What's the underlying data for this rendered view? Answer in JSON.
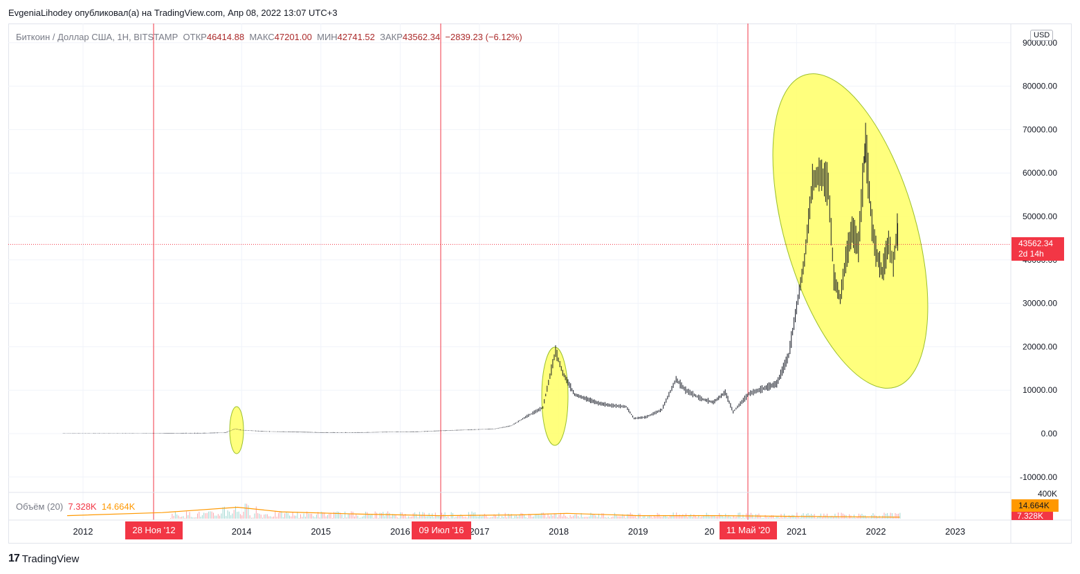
{
  "header": {
    "attribution": "EvgeniaLihodey опубликовал(а) на TradingView.com, Апр 08, 2022 13:07 UTC+3"
  },
  "legend": {
    "symbol": "Биткоин / Доллар США, 1Н, BITSTAMP",
    "open_label": "ОТКР",
    "open": "46414.88",
    "high_label": "МАКС",
    "high": "47201.00",
    "low_label": "МИН",
    "low": "42741.52",
    "close_label": "ЗАКР",
    "close": "43562.34",
    "change": "−2839.23 (−6.12%)"
  },
  "volume_legend": {
    "label": "Объём (20)",
    "value": "7.328K",
    "ma": "14.664K"
  },
  "currency_badge": "USD",
  "price_label": {
    "price": "43562.34",
    "countdown": "2d 14h"
  },
  "volume_labels": {
    "ma": "14.664K",
    "value": "7.328K"
  },
  "date_markers": [
    "28 Ноя '12",
    "09 Июл '16",
    "11 Май '20"
  ],
  "footer": {
    "logo": "17",
    "brand": "TradingView"
  },
  "colors": {
    "marker": "#f23645",
    "ellipse": "#ffff66",
    "ellipse_stroke": "#9bbf2a",
    "candle": "#131722",
    "volume_ma": "#ff9800",
    "volume_bar": "#26a69a"
  },
  "chart_data": {
    "type": "line",
    "title": "",
    "x_ticks": [
      "2012",
      "2014",
      "2015",
      "2016",
      "2017",
      "2018",
      "2019",
      "20",
      "2021",
      "2022",
      "2023"
    ],
    "y_ticks": [
      "-10000.00",
      "0.00",
      "10000.00",
      "20000.00",
      "30000.00",
      "40000.00",
      "50000.00",
      "60000.00",
      "70000.00",
      "80000.00",
      "90000.00"
    ],
    "ylim": [
      -10000,
      90000
    ],
    "volume_axis_label": "400K",
    "grid": true,
    "last_price": 43562.34,
    "series": [
      {
        "values": [
          [
            2011.75,
            5
          ],
          [
            2012.5,
            8
          ],
          [
            2012.9,
            12
          ],
          [
            2013.3,
            100
          ],
          [
            2013.5,
            100
          ],
          [
            2013.8,
            250
          ],
          [
            2013.92,
            1100
          ],
          [
            2014.0,
            800
          ],
          [
            2014.3,
            500
          ],
          [
            2014.8,
            350
          ],
          [
            2015.0,
            250
          ],
          [
            2015.5,
            250
          ],
          [
            2015.9,
            400
          ],
          [
            2016.2,
            420
          ],
          [
            2016.5,
            650
          ],
          [
            2016.9,
            900
          ],
          [
            2017.2,
            1100
          ],
          [
            2017.4,
            1800
          ],
          [
            2017.6,
            4000
          ],
          [
            2017.8,
            6000
          ],
          [
            2017.96,
            19000
          ],
          [
            2018.05,
            14000
          ],
          [
            2018.2,
            9000
          ],
          [
            2018.35,
            8000
          ],
          [
            2018.5,
            7000
          ],
          [
            2018.65,
            6500
          ],
          [
            2018.85,
            6200
          ],
          [
            2018.95,
            3500
          ],
          [
            2019.1,
            3800
          ],
          [
            2019.3,
            5500
          ],
          [
            2019.48,
            12500
          ],
          [
            2019.6,
            10000
          ],
          [
            2019.8,
            8000
          ],
          [
            2019.95,
            7200
          ],
          [
            2020.1,
            9500
          ],
          [
            2020.2,
            5000
          ],
          [
            2020.4,
            9200
          ],
          [
            2020.6,
            10500
          ],
          [
            2020.75,
            11500
          ],
          [
            2020.9,
            18000
          ],
          [
            2021.0,
            29000
          ],
          [
            2021.1,
            40000
          ],
          [
            2021.2,
            58000
          ],
          [
            2021.3,
            60000
          ],
          [
            2021.4,
            57000
          ],
          [
            2021.47,
            36000
          ],
          [
            2021.55,
            31000
          ],
          [
            2021.62,
            40000
          ],
          [
            2021.7,
            47000
          ],
          [
            2021.78,
            43000
          ],
          [
            2021.85,
            62000
          ],
          [
            2021.87,
            67000
          ],
          [
            2021.95,
            48000
          ],
          [
            2022.0,
            42000
          ],
          [
            2022.08,
            37000
          ],
          [
            2022.16,
            44000
          ],
          [
            2022.22,
            39000
          ],
          [
            2022.27,
            47000
          ],
          [
            2022.28,
            43562
          ]
        ]
      }
    ],
    "volume_ma": [
      [
        2011.8,
        4
      ],
      [
        2013.0,
        8
      ],
      [
        2013.95,
        15
      ],
      [
        2014.5,
        9
      ],
      [
        2015.5,
        6
      ],
      [
        2016.5,
        4
      ],
      [
        2017.5,
        5
      ],
      [
        2018.1,
        7
      ],
      [
        2019.0,
        4
      ],
      [
        2020.0,
        4
      ],
      [
        2021.0,
        3
      ],
      [
        2022.3,
        2
      ]
    ]
  }
}
